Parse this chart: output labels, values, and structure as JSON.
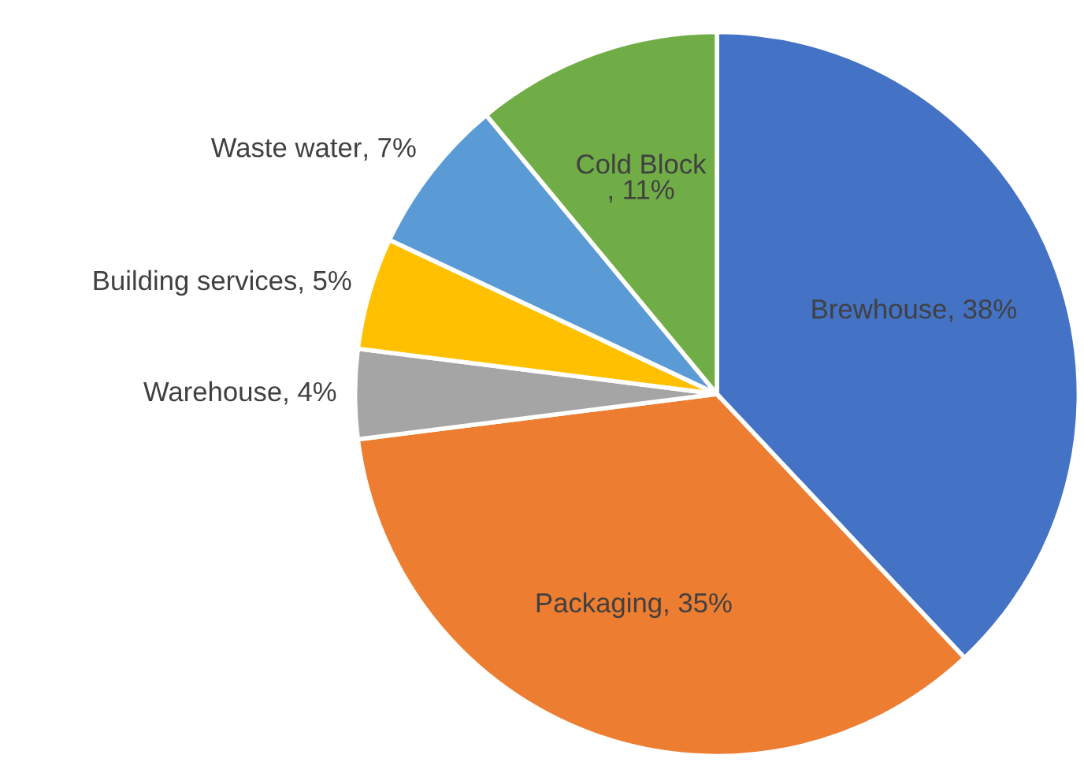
{
  "chart_data": {
    "type": "pie",
    "categories": [
      "Brewhouse",
      "Packaging",
      "Warehouse",
      "Building services",
      "Waste water",
      "Cold Block"
    ],
    "values": [
      38,
      35,
      4,
      5,
      7,
      11
    ],
    "colors": [
      "#4472c4",
      "#ed7d31",
      "#a5a5a5",
      "#ffc000",
      "#5b9bd5",
      "#70ad47"
    ],
    "value_labels": [
      ", 38%",
      ", 35%",
      ", 4%",
      ", 5%",
      ", 7%",
      ", 11%"
    ]
  }
}
